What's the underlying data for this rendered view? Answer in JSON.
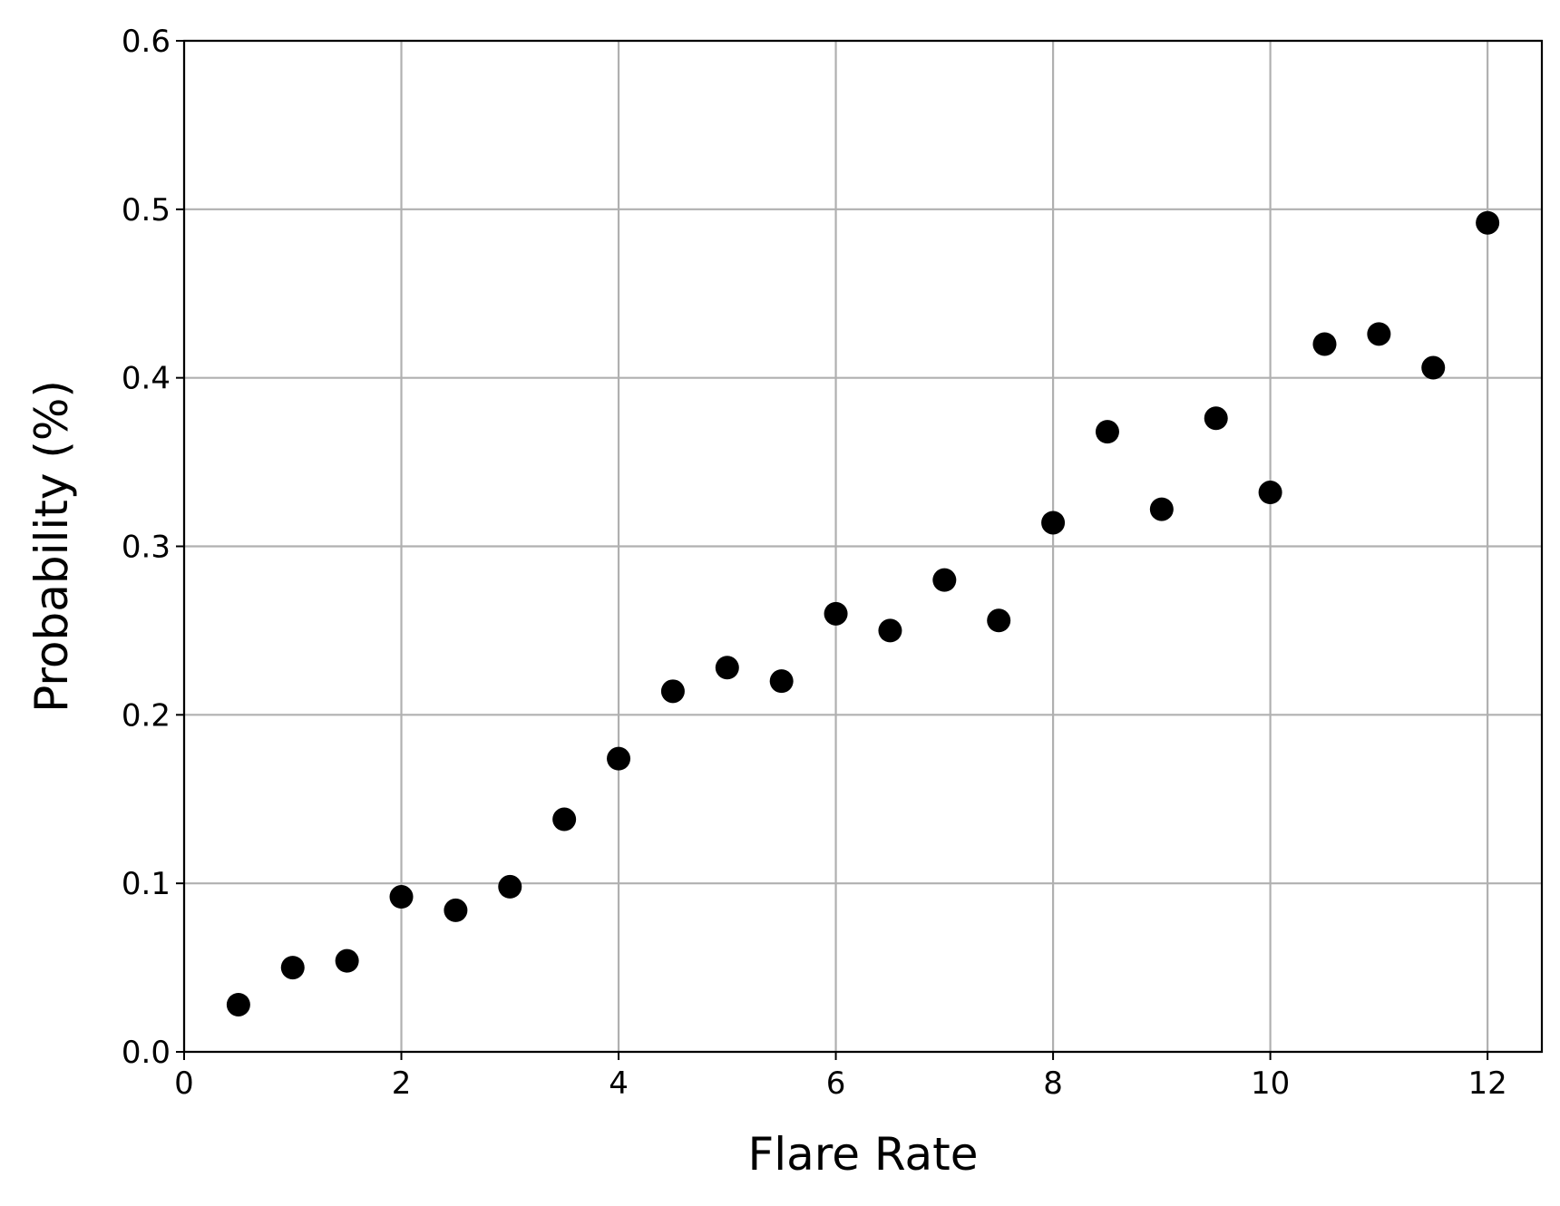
{
  "chart_data": {
    "type": "scatter",
    "title": "",
    "xlabel": "Flare Rate",
    "ylabel": "Probability (%)",
    "xlim": [
      0,
      12.5
    ],
    "ylim": [
      0,
      0.6
    ],
    "xticks": [
      0,
      2,
      4,
      6,
      8,
      10,
      12
    ],
    "xtick_labels": [
      "0",
      "2",
      "4",
      "6",
      "8",
      "10",
      "12"
    ],
    "yticks": [
      0.0,
      0.1,
      0.2,
      0.3,
      0.4,
      0.5,
      0.6
    ],
    "ytick_labels": [
      "0.0",
      "0.1",
      "0.2",
      "0.3",
      "0.4",
      "0.5",
      "0.6"
    ],
    "grid": true,
    "marker_color": "#000000",
    "grid_color": "#b0b0b0",
    "series": [
      {
        "x": [
          0.5,
          1.0,
          1.5,
          2.0,
          2.5,
          3.0,
          3.5,
          4.0,
          4.5,
          5.0,
          5.5,
          6.0,
          6.5,
          7.0,
          7.5,
          8.0,
          8.5,
          9.0,
          9.5,
          10.0,
          10.5,
          11.0,
          11.5,
          12.0
        ],
        "y": [
          0.028,
          0.05,
          0.054,
          0.092,
          0.084,
          0.098,
          0.138,
          0.174,
          0.214,
          0.228,
          0.22,
          0.26,
          0.25,
          0.28,
          0.256,
          0.314,
          0.368,
          0.322,
          0.376,
          0.332,
          0.42,
          0.426,
          0.406,
          0.492
        ]
      }
    ]
  }
}
